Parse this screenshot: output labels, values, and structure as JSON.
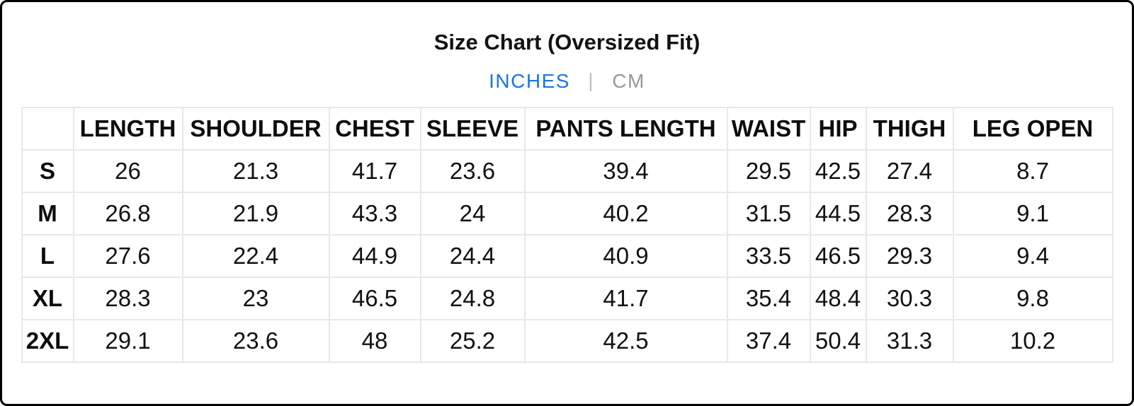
{
  "page": {
    "title": "Size Chart (Oversized Fit)"
  },
  "unit_toggle": {
    "divider": "|",
    "options": [
      {
        "label": "INCHES",
        "active": true
      },
      {
        "label": "CM",
        "active": false
      }
    ],
    "active_color": "#1a73e8",
    "inactive_color": "#989898"
  },
  "chart_data": {
    "type": "table",
    "title": "Size Chart (Oversized Fit)",
    "unit": "INCHES",
    "columns": [
      "",
      "LENGTH",
      "SHOULDER",
      "CHEST",
      "SLEEVE",
      "PANTS LENGTH",
      "WAIST",
      "HIP",
      "THIGH",
      "LEG OPEN"
    ],
    "rows": [
      {
        "size": "S",
        "values": [
          "26",
          "21.3",
          "41.7",
          "23.6",
          "39.4",
          "29.5",
          "42.5",
          "27.4",
          "8.7"
        ]
      },
      {
        "size": "M",
        "values": [
          "26.8",
          "21.9",
          "43.3",
          "24",
          "40.2",
          "31.5",
          "44.5",
          "28.3",
          "9.1"
        ]
      },
      {
        "size": "L",
        "values": [
          "27.6",
          "22.4",
          "44.9",
          "24.4",
          "40.9",
          "33.5",
          "46.5",
          "29.3",
          "9.4"
        ]
      },
      {
        "size": "XL",
        "values": [
          "28.3",
          "23",
          "46.5",
          "24.8",
          "41.7",
          "35.4",
          "48.4",
          "30.3",
          "9.8"
        ]
      },
      {
        "size": "2XL",
        "values": [
          "29.1",
          "23.6",
          "48",
          "25.2",
          "42.5",
          "37.4",
          "50.4",
          "31.3",
          "10.2"
        ]
      }
    ]
  }
}
